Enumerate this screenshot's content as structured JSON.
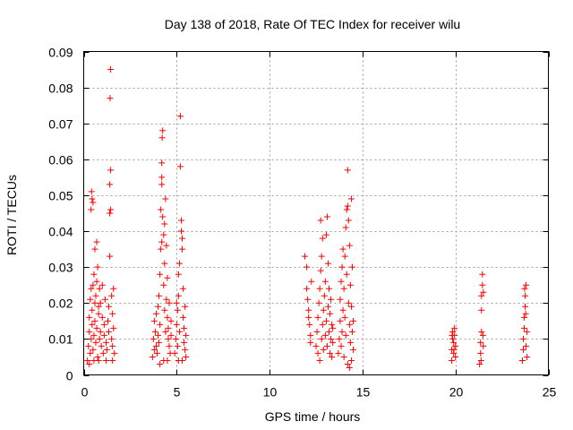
{
  "colors": {
    "series": "#ff0000",
    "grid": "#a0a0a0",
    "axis": "#000000"
  },
  "chart_data": {
    "type": "scatter",
    "marker": "plus",
    "title": "Day 138 of 2018, Rate Of TEC Index for receiver wilu",
    "xlabel": "GPS time / hours",
    "ylabel": "ROTI / TECUs",
    "xlim": [
      0,
      25
    ],
    "ylim": [
      0,
      0.09
    ],
    "xticks": [
      0,
      5,
      10,
      15,
      20,
      25
    ],
    "xtick_labels": [
      "0",
      "5",
      "10",
      "15",
      "20",
      "25"
    ],
    "yticks": [
      0,
      0.01,
      0.02,
      0.03,
      0.04,
      0.05,
      0.06,
      0.07,
      0.08,
      0.09
    ],
    "ytick_labels": [
      "0",
      "0.01",
      "0.02",
      "0.03",
      "0.04",
      "0.05",
      "0.06",
      "0.07",
      "0.08",
      "0.09"
    ],
    "grid": true,
    "legend": "none",
    "series": [
      {
        "points": [
          [
            0.2,
            0.004
          ],
          [
            0.25,
            0.008
          ],
          [
            0.3,
            0.012
          ],
          [
            0.3,
            0.016
          ],
          [
            0.35,
            0.006
          ],
          [
            0.35,
            0.021
          ],
          [
            0.4,
            0.024
          ],
          [
            0.4,
            0.01
          ],
          [
            0.45,
            0.014
          ],
          [
            0.45,
            0.018
          ],
          [
            0.5,
            0.007
          ],
          [
            0.5,
            0.025
          ],
          [
            0.4,
            0.046
          ],
          [
            0.45,
            0.049
          ],
          [
            0.42,
            0.051
          ],
          [
            0.5,
            0.048
          ],
          [
            0.55,
            0.028
          ],
          [
            0.55,
            0.011
          ],
          [
            0.6,
            0.02
          ],
          [
            0.6,
            0.015
          ],
          [
            0.6,
            0.035
          ],
          [
            0.65,
            0.009
          ],
          [
            0.65,
            0.022
          ],
          [
            0.7,
            0.026
          ],
          [
            0.7,
            0.037
          ],
          [
            0.7,
            0.013
          ],
          [
            0.75,
            0.03
          ],
          [
            0.75,
            0.005
          ],
          [
            0.8,
            0.019
          ],
          [
            0.8,
            0.017
          ],
          [
            0.85,
            0.024
          ],
          [
            0.85,
            0.01
          ],
          [
            0.9,
            0.012
          ],
          [
            0.9,
            0.02
          ],
          [
            0.95,
            0.008
          ],
          [
            1.0,
            0.016
          ],
          [
            1.0,
            0.025
          ],
          [
            1.05,
            0.006
          ],
          [
            1.1,
            0.011
          ],
          [
            1.1,
            0.014
          ],
          [
            1.15,
            0.021
          ],
          [
            1.2,
            0.009
          ],
          [
            1.25,
            0.007
          ],
          [
            1.3,
            0.015
          ],
          [
            1.35,
            0.012
          ],
          [
            1.35,
            0.019
          ],
          [
            1.4,
            0.033
          ],
          [
            1.4,
            0.045
          ],
          [
            1.4,
            0.053
          ],
          [
            1.45,
            0.046
          ],
          [
            1.45,
            0.057
          ],
          [
            1.42,
            0.077
          ],
          [
            1.45,
            0.085
          ],
          [
            1.5,
            0.022
          ],
          [
            1.5,
            0.01
          ],
          [
            1.55,
            0.008
          ],
          [
            1.55,
            0.017
          ],
          [
            1.6,
            0.013
          ],
          [
            1.6,
            0.024
          ],
          [
            1.65,
            0.006
          ],
          [
            0.3,
            0.003
          ],
          [
            0.55,
            0.004
          ],
          [
            0.8,
            0.004
          ],
          [
            1.2,
            0.004
          ],
          [
            1.55,
            0.004
          ],
          [
            3.7,
            0.005
          ],
          [
            3.75,
            0.01
          ],
          [
            3.8,
            0.015
          ],
          [
            3.8,
            0.007
          ],
          [
            3.85,
            0.012
          ],
          [
            3.9,
            0.017
          ],
          [
            3.9,
            0.008
          ],
          [
            3.95,
            0.006
          ],
          [
            4.0,
            0.011
          ],
          [
            4.0,
            0.019
          ],
          [
            4.05,
            0.022
          ],
          [
            4.05,
            0.009
          ],
          [
            4.1,
            0.028
          ],
          [
            4.1,
            0.014
          ],
          [
            4.15,
            0.035
          ],
          [
            4.15,
            0.046
          ],
          [
            4.2,
            0.053
          ],
          [
            4.2,
            0.055
          ],
          [
            4.2,
            0.059
          ],
          [
            4.22,
            0.066
          ],
          [
            4.25,
            0.068
          ],
          [
            4.25,
            0.044
          ],
          [
            4.3,
            0.039
          ],
          [
            4.3,
            0.025
          ],
          [
            4.35,
            0.018
          ],
          [
            4.35,
            0.031
          ],
          [
            4.4,
            0.012
          ],
          [
            4.4,
            0.049
          ],
          [
            4.45,
            0.021
          ],
          [
            4.45,
            0.036
          ],
          [
            4.5,
            0.016
          ],
          [
            4.5,
            0.027
          ],
          [
            4.55,
            0.01
          ],
          [
            4.55,
            0.013
          ],
          [
            4.6,
            0.008
          ],
          [
            4.6,
            0.02
          ],
          [
            4.65,
            0.006
          ],
          [
            4.7,
            0.011
          ],
          [
            4.7,
            0.015
          ],
          [
            4.1,
            0.003
          ],
          [
            4.3,
            0.004
          ],
          [
            4.5,
            0.004
          ],
          [
            4.2,
            0.037
          ],
          [
            4.35,
            0.042
          ],
          [
            4.9,
            0.006
          ],
          [
            4.95,
            0.01
          ],
          [
            5.0,
            0.014
          ],
          [
            5.0,
            0.02
          ],
          [
            5.05,
            0.008
          ],
          [
            5.05,
            0.018
          ],
          [
            5.1,
            0.022
          ],
          [
            5.1,
            0.028
          ],
          [
            5.15,
            0.012
          ],
          [
            5.15,
            0.031
          ],
          [
            5.2,
            0.058
          ],
          [
            5.2,
            0.072
          ],
          [
            5.25,
            0.043
          ],
          [
            5.25,
            0.04
          ],
          [
            5.3,
            0.038
          ],
          [
            5.3,
            0.035
          ],
          [
            5.35,
            0.016
          ],
          [
            5.35,
            0.024
          ],
          [
            5.4,
            0.009
          ],
          [
            5.4,
            0.013
          ],
          [
            5.45,
            0.019
          ],
          [
            5.45,
            0.007
          ],
          [
            5.5,
            0.011
          ],
          [
            5.5,
            0.005
          ],
          [
            5.1,
            0.004
          ],
          [
            5.3,
            0.004
          ],
          [
            11.9,
            0.033
          ],
          [
            12.0,
            0.03
          ],
          [
            12.0,
            0.024
          ],
          [
            12.05,
            0.021
          ],
          [
            12.1,
            0.018
          ],
          [
            12.1,
            0.016
          ],
          [
            12.15,
            0.014
          ],
          [
            12.2,
            0.011
          ],
          [
            12.25,
            0.026
          ],
          [
            12.2,
            0.009
          ],
          [
            12.5,
            0.008
          ],
          [
            12.55,
            0.012
          ],
          [
            12.6,
            0.016
          ],
          [
            12.6,
            0.006
          ],
          [
            12.65,
            0.02
          ],
          [
            12.7,
            0.024
          ],
          [
            12.7,
            0.004
          ],
          [
            12.75,
            0.029
          ],
          [
            12.75,
            0.043
          ],
          [
            12.8,
            0.033
          ],
          [
            12.8,
            0.01
          ],
          [
            12.85,
            0.038
          ],
          [
            12.85,
            0.014
          ],
          [
            12.9,
            0.018
          ],
          [
            12.9,
            0.007
          ],
          [
            12.95,
            0.022
          ],
          [
            13.0,
            0.011
          ],
          [
            13.0,
            0.026
          ],
          [
            13.05,
            0.039
          ],
          [
            13.05,
            0.015
          ],
          [
            13.1,
            0.044
          ],
          [
            13.1,
            0.008
          ],
          [
            13.15,
            0.019
          ],
          [
            13.15,
            0.031
          ],
          [
            13.2,
            0.012
          ],
          [
            13.2,
            0.024
          ],
          [
            13.25,
            0.006
          ],
          [
            13.25,
            0.017
          ],
          [
            13.3,
            0.01
          ],
          [
            13.3,
            0.021
          ],
          [
            13.35,
            0.014
          ],
          [
            13.35,
            0.005
          ],
          [
            13.4,
            0.009
          ],
          [
            13.4,
            0.013
          ],
          [
            13.7,
            0.006
          ],
          [
            13.75,
            0.01
          ],
          [
            13.8,
            0.015
          ],
          [
            13.8,
            0.021
          ],
          [
            13.85,
            0.008
          ],
          [
            13.85,
            0.026
          ],
          [
            13.9,
            0.012
          ],
          [
            13.9,
            0.03
          ],
          [
            13.95,
            0.018
          ],
          [
            13.95,
            0.035
          ],
          [
            14.0,
            0.005
          ],
          [
            14.0,
            0.024
          ],
          [
            14.05,
            0.033
          ],
          [
            14.05,
            0.016
          ],
          [
            14.1,
            0.041
          ],
          [
            14.1,
            0.011
          ],
          [
            14.15,
            0.046
          ],
          [
            14.15,
            0.028
          ],
          [
            14.2,
            0.047
          ],
          [
            14.2,
            0.057
          ],
          [
            14.25,
            0.043
          ],
          [
            14.25,
            0.02
          ],
          [
            14.3,
            0.036
          ],
          [
            14.3,
            0.014
          ],
          [
            14.35,
            0.009
          ],
          [
            14.35,
            0.025
          ],
          [
            14.4,
            0.019
          ],
          [
            14.4,
            0.004
          ],
          [
            14.45,
            0.012
          ],
          [
            14.45,
            0.03
          ],
          [
            14.5,
            0.007
          ],
          [
            14.5,
            0.015
          ],
          [
            14.3,
            0.002
          ],
          [
            14.2,
            0.003
          ],
          [
            14.4,
            0.049
          ],
          [
            19.8,
            0.004
          ],
          [
            19.8,
            0.007
          ],
          [
            19.85,
            0.01
          ],
          [
            19.85,
            0.012
          ],
          [
            19.9,
            0.006
          ],
          [
            19.9,
            0.009
          ],
          [
            19.95,
            0.011
          ],
          [
            19.95,
            0.013
          ],
          [
            20.0,
            0.008
          ],
          [
            20.0,
            0.005
          ],
          [
            19.82,
            0.011
          ],
          [
            19.92,
            0.007
          ],
          [
            21.3,
            0.003
          ],
          [
            21.35,
            0.006
          ],
          [
            21.35,
            0.009
          ],
          [
            21.4,
            0.012
          ],
          [
            21.4,
            0.018
          ],
          [
            21.4,
            0.022
          ],
          [
            21.45,
            0.025
          ],
          [
            21.45,
            0.028
          ],
          [
            21.5,
            0.023
          ],
          [
            21.5,
            0.008
          ],
          [
            21.38,
            0.004
          ],
          [
            21.48,
            0.011
          ],
          [
            23.6,
            0.004
          ],
          [
            23.65,
            0.007
          ],
          [
            23.65,
            0.01
          ],
          [
            23.7,
            0.013
          ],
          [
            23.7,
            0.016
          ],
          [
            23.75,
            0.019
          ],
          [
            23.75,
            0.022
          ],
          [
            23.8,
            0.025
          ],
          [
            23.8,
            0.008
          ],
          [
            23.85,
            0.012
          ],
          [
            23.85,
            0.005
          ],
          [
            23.72,
            0.024
          ],
          [
            23.78,
            0.017
          ]
        ]
      }
    ]
  }
}
